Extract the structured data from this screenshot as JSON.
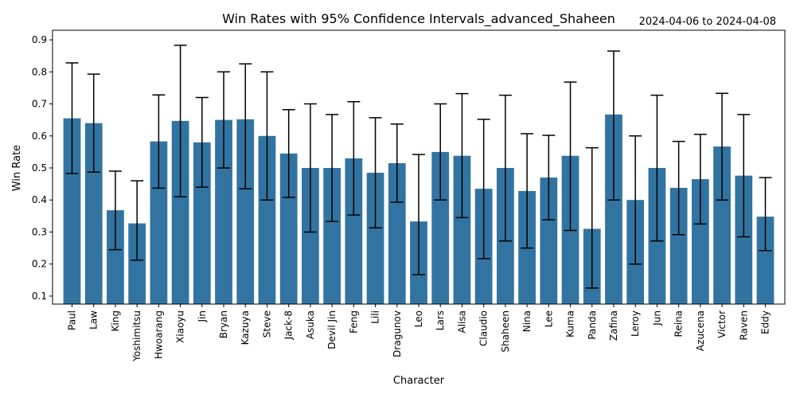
{
  "chart_data": {
    "type": "bar",
    "title": "Win Rates with 95% Confidence Intervals_advanced_Shaheen",
    "date_range": "2024-04-06 to 2024-04-08",
    "xlabel": "Character",
    "ylabel": "Win Rate",
    "ylim": [
      0.075,
      0.93
    ],
    "yticks": [
      0.1,
      0.2,
      0.3,
      0.4,
      0.5,
      0.6,
      0.7,
      0.8,
      0.9
    ],
    "ytick_labels": [
      "0.1",
      "0.2",
      "0.3",
      "0.4",
      "0.5",
      "0.6",
      "0.7",
      "0.8",
      "0.9"
    ],
    "grid": false,
    "bar_color": "#3274a1",
    "categories": [
      "Paul",
      "Law",
      "King",
      "Yoshimitsu",
      "Hwoarang",
      "Xiaoyu",
      "Jin",
      "Bryan",
      "Kazuya",
      "Steve",
      "Jack-8",
      "Asuka",
      "Devil Jin",
      "Feng",
      "Lili",
      "Dragunov",
      "Leo",
      "Lars",
      "Alisa",
      "Claudio",
      "Shaheen",
      "Nina",
      "Lee",
      "Kuma",
      "Panda",
      "Zafina",
      "Leroy",
      "Jun",
      "Reina",
      "Azucena",
      "Victor",
      "Raven",
      "Eddy"
    ],
    "values": [
      0.655,
      0.64,
      0.368,
      0.327,
      0.583,
      0.647,
      0.58,
      0.65,
      0.652,
      0.6,
      0.545,
      0.5,
      0.5,
      0.53,
      0.485,
      0.515,
      0.333,
      0.55,
      0.538,
      0.435,
      0.5,
      0.428,
      0.47,
      0.538,
      0.31,
      0.667,
      0.4,
      0.5,
      0.438,
      0.465,
      0.567,
      0.476,
      0.348
    ],
    "ci_lower": [
      0.483,
      0.487,
      0.245,
      0.212,
      0.437,
      0.41,
      0.44,
      0.5,
      0.435,
      0.4,
      0.408,
      0.3,
      0.333,
      0.353,
      0.313,
      0.393,
      0.167,
      0.4,
      0.345,
      0.217,
      0.272,
      0.25,
      0.338,
      0.305,
      0.125,
      0.4,
      0.2,
      0.272,
      0.292,
      0.325,
      0.4,
      0.285,
      0.242
    ],
    "ci_upper": [
      0.828,
      0.793,
      0.49,
      0.46,
      0.728,
      0.883,
      0.72,
      0.8,
      0.825,
      0.8,
      0.682,
      0.7,
      0.667,
      0.707,
      0.657,
      0.637,
      0.542,
      0.7,
      0.732,
      0.652,
      0.727,
      0.607,
      0.602,
      0.768,
      0.563,
      0.865,
      0.6,
      0.727,
      0.583,
      0.605,
      0.733,
      0.667,
      0.47
    ]
  }
}
